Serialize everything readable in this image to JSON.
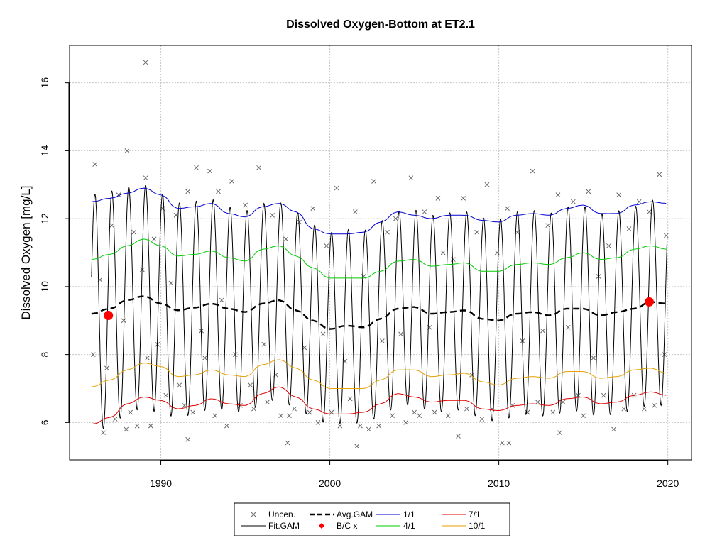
{
  "chart_data": {
    "type": "line",
    "title": "Dissolved Oxygen-Bottom at ET2.1",
    "xlabel": "",
    "ylabel": "Dissolved Oxygen [mg/L]",
    "xlim": [
      1984.6,
      2021.4
    ],
    "ylim": [
      4.9,
      17.1
    ],
    "x_ticks": [
      1990,
      2000,
      2010,
      2020
    ],
    "y_ticks": [
      6,
      8,
      10,
      12,
      14,
      16
    ],
    "grid": true,
    "legend_position": "bottom",
    "fit_gam": {
      "name": "Fit.GAM",
      "color": "#000000",
      "start": 1985.9,
      "end": 2019.95,
      "seasonal_peak_month_fraction": 0.1,
      "baseline_from": "avg_gam",
      "amplitude_from": "1/1 and 7/1 curves"
    },
    "avg_gam": {
      "name": "Avg.GAM",
      "color": "#000000",
      "x": [
        1985.9,
        1987,
        1988,
        1989,
        1990,
        1991,
        1992,
        1993,
        1994,
        1995,
        1996,
        1997,
        1998,
        1999,
        2000,
        2001,
        2002,
        2003,
        2004,
        2005,
        2006,
        2007,
        2008,
        2009,
        2010,
        2011,
        2012,
        2013,
        2014,
        2015,
        2016,
        2017,
        2018,
        2019,
        2019.9
      ],
      "y": [
        9.2,
        9.35,
        9.6,
        9.72,
        9.5,
        9.3,
        9.38,
        9.5,
        9.35,
        9.25,
        9.5,
        9.6,
        9.3,
        9.0,
        8.75,
        8.85,
        8.8,
        9.05,
        9.35,
        9.4,
        9.2,
        9.25,
        9.3,
        9.05,
        9.0,
        9.2,
        9.25,
        9.15,
        9.35,
        9.35,
        9.15,
        9.25,
        9.35,
        9.55,
        9.5
      ]
    },
    "series": [
      {
        "name": "1/1",
        "color": "#0000cc",
        "x": [
          1985.9,
          1987,
          1988,
          1989,
          1990,
          1991,
          1992,
          1993,
          1994,
          1995,
          1996,
          1997,
          1998,
          1999,
          2000,
          2001,
          2002,
          2003,
          2004,
          2005,
          2006,
          2007,
          2008,
          2009,
          2010,
          2011,
          2012,
          2013,
          2014,
          2015,
          2016,
          2017,
          2018,
          2019,
          2019.9
        ],
        "y": [
          12.5,
          12.6,
          12.75,
          12.9,
          12.7,
          12.3,
          12.35,
          12.45,
          12.15,
          12.05,
          12.35,
          12.45,
          12.2,
          11.7,
          11.55,
          11.55,
          11.6,
          11.9,
          12.2,
          12.1,
          12.0,
          12.1,
          12.1,
          11.95,
          11.9,
          12.1,
          12.15,
          12.1,
          12.3,
          12.4,
          12.15,
          12.15,
          12.4,
          12.5,
          12.45
        ]
      },
      {
        "name": "4/1",
        "color": "#00cc00",
        "x": [
          1985.9,
          1987,
          1988,
          1989,
          1990,
          1991,
          1992,
          1993,
          1994,
          1995,
          1996,
          1997,
          1998,
          1999,
          2000,
          2001,
          2002,
          2003,
          2004,
          2005,
          2006,
          2007,
          2008,
          2009,
          2010,
          2011,
          2012,
          2013,
          2014,
          2015,
          2016,
          2017,
          2018,
          2019,
          2019.9
        ],
        "y": [
          10.8,
          10.95,
          11.2,
          11.4,
          11.2,
          10.9,
          10.95,
          11.05,
          10.85,
          10.75,
          11.1,
          11.2,
          10.9,
          10.55,
          10.25,
          10.25,
          10.25,
          10.45,
          10.75,
          10.8,
          10.6,
          10.65,
          10.7,
          10.45,
          10.45,
          10.65,
          10.7,
          10.65,
          10.85,
          11.0,
          10.8,
          10.85,
          11.1,
          11.2,
          11.1
        ]
      },
      {
        "name": "7/1",
        "color": "#dd0000",
        "x": [
          1985.9,
          1987,
          1988,
          1989,
          1990,
          1991,
          1992,
          1993,
          1994,
          1995,
          1996,
          1997,
          1998,
          1999,
          2000,
          2001,
          2002,
          2003,
          2004,
          2005,
          2006,
          2007,
          2008,
          2009,
          2010,
          2011,
          2012,
          2013,
          2014,
          2015,
          2016,
          2017,
          2018,
          2019,
          2019.9
        ],
        "y": [
          5.95,
          6.15,
          6.55,
          6.75,
          6.65,
          6.4,
          6.5,
          6.7,
          6.55,
          6.5,
          6.85,
          7.05,
          6.75,
          6.4,
          6.25,
          6.25,
          6.3,
          6.55,
          6.85,
          6.75,
          6.6,
          6.65,
          6.65,
          6.4,
          6.35,
          6.5,
          6.55,
          6.5,
          6.7,
          6.75,
          6.55,
          6.6,
          6.8,
          6.9,
          6.8
        ]
      },
      {
        "name": "10/1",
        "color": "#e6a000",
        "x": [
          1985.9,
          1987,
          1988,
          1989,
          1990,
          1991,
          1992,
          1993,
          1994,
          1995,
          1996,
          1997,
          1998,
          1999,
          2000,
          2001,
          2002,
          2003,
          2004,
          2005,
          2006,
          2007,
          2008,
          2009,
          2010,
          2011,
          2012,
          2013,
          2014,
          2015,
          2016,
          2017,
          2018,
          2019,
          2019.9
        ],
        "y": [
          7.05,
          7.25,
          7.55,
          7.75,
          7.65,
          7.35,
          7.4,
          7.55,
          7.4,
          7.35,
          7.7,
          7.85,
          7.6,
          7.25,
          7.0,
          7.0,
          7.0,
          7.25,
          7.55,
          7.55,
          7.35,
          7.4,
          7.45,
          7.2,
          7.1,
          7.3,
          7.35,
          7.3,
          7.5,
          7.5,
          7.3,
          7.35,
          7.55,
          7.6,
          7.45
        ]
      }
    ],
    "bc_points": {
      "name": "B/C x",
      "color": "#ff0000",
      "x": [
        1986.9,
        2018.9
      ],
      "y": [
        9.15,
        9.55
      ]
    },
    "uncen_points": {
      "name": "Uncen.",
      "color": "#666666",
      "x": [
        1986.0,
        1986.1,
        1986.4,
        1986.6,
        1986.8,
        1987.1,
        1987.3,
        1987.5,
        1987.8,
        1988.0,
        1988.2,
        1988.4,
        1988.6,
        1988.9,
        1989.1,
        1989.2,
        1989.4,
        1989.6,
        1989.8,
        1990.1,
        1990.3,
        1990.6,
        1990.9,
        1991.1,
        1991.4,
        1991.6,
        1991.9,
        1992.1,
        1992.4,
        1992.6,
        1992.9,
        1993.2,
        1993.4,
        1993.6,
        1993.9,
        1994.2,
        1994.4,
        1994.7,
        1995.0,
        1995.3,
        1995.5,
        1995.8,
        1996.1,
        1996.3,
        1996.6,
        1996.8,
        1997.1,
        1997.4,
        1997.6,
        1997.9,
        1998.2,
        1998.5,
        1998.8,
        1999.0,
        1999.3,
        1999.6,
        1999.8,
        2000.1,
        2000.4,
        2000.6,
        2000.9,
        2001.2,
        2001.5,
        2001.8,
        2002.0,
        2002.3,
        2002.6,
        2002.9,
        2003.1,
        2003.4,
        2003.7,
        2003.9,
        2004.2,
        2004.5,
        2004.8,
        2005.0,
        2005.3,
        2005.6,
        2005.9,
        2006.2,
        2006.4,
        2006.7,
        2007.0,
        2007.3,
        2007.6,
        2007.9,
        2008.1,
        2008.4,
        2008.7,
        2009.0,
        2009.3,
        2009.6,
        2009.9,
        2010.2,
        2010.5,
        2010.8,
        2011.1,
        2011.4,
        2011.7,
        2012.0,
        2012.3,
        2012.6,
        2012.9,
        2013.2,
        2013.5,
        2013.8,
        2014.1,
        2014.4,
        2014.7,
        2015.0,
        2015.3,
        2015.6,
        2015.9,
        2016.2,
        2016.5,
        2016.8,
        2017.1,
        2017.4,
        2017.7,
        2018.0,
        2018.3,
        2018.6,
        2018.9,
        2019.2,
        2019.5,
        2019.8,
        2019.9,
        1989.1,
        1987.95,
        2001.6,
        1997.5,
        2010.6,
        2013.6,
        1991.6
      ],
      "y": [
        8.0,
        13.6,
        10.2,
        5.7,
        7.6,
        11.8,
        6.1,
        12.7,
        9.0,
        14.0,
        6.3,
        11.6,
        5.9,
        10.5,
        13.2,
        7.9,
        5.9,
        11.4,
        8.3,
        12.3,
        6.8,
        10.1,
        12.1,
        7.1,
        6.5,
        12.8,
        6.3,
        13.5,
        8.7,
        7.9,
        13.4,
        6.2,
        12.8,
        9.6,
        5.9,
        13.1,
        8.0,
        6.5,
        12.4,
        7.1,
        6.4,
        13.5,
        8.3,
        6.6,
        12.1,
        7.4,
        6.2,
        11.4,
        6.2,
        6.4,
        11.9,
        8.2,
        6.3,
        12.3,
        6.0,
        8.6,
        11.2,
        6.3,
        12.9,
        5.9,
        7.8,
        6.7,
        12.2,
        5.9,
        10.3,
        5.8,
        13.1,
        5.9,
        8.4,
        11.6,
        6.2,
        12.0,
        8.6,
        6.0,
        13.2,
        6.3,
        6.2,
        12.2,
        8.8,
        6.3,
        12.6,
        11.0,
        6.2,
        10.8,
        5.6,
        12.6,
        6.4,
        7.4,
        11.6,
        6.1,
        13.0,
        6.4,
        11.0,
        5.4,
        12.3,
        6.5,
        11.6,
        8.4,
        6.3,
        13.4,
        6.6,
        8.7,
        11.8,
        6.3,
        12.7,
        6.6,
        8.8,
        12.5,
        6.8,
        6.2,
        12.8,
        7.9,
        10.3,
        6.8,
        11.2,
        5.8,
        12.7,
        6.4,
        11.7,
        6.8,
        12.5,
        6.4,
        12.2,
        6.5,
        13.3,
        8.0,
        11.5,
        16.6,
        5.8,
        5.3,
        5.4,
        5.4,
        5.7,
        5.5
      ]
    },
    "legend": [
      [
        "Uncen.",
        "Avg.GAM",
        "1/1",
        "7/1"
      ],
      [
        "Fit.GAM",
        "B/C x",
        "4/1",
        "10/1"
      ]
    ]
  }
}
